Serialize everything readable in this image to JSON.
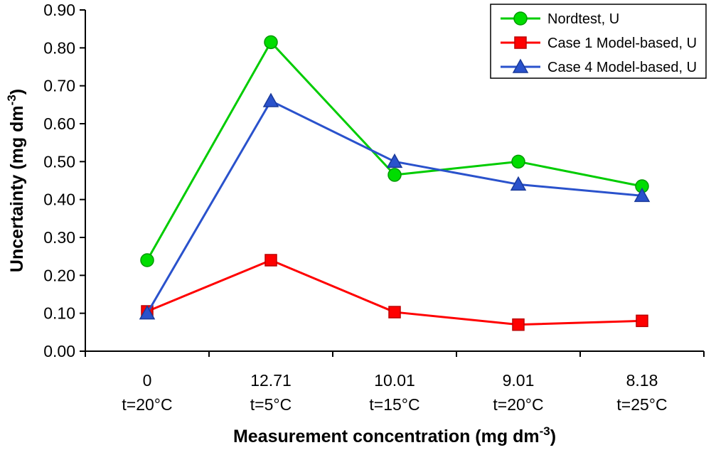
{
  "chart_data": {
    "type": "line",
    "title": "",
    "categories": [
      "0",
      "12.71",
      "10.01",
      "9.01",
      "8.18"
    ],
    "category_sublabels": [
      "t=20°C",
      "t=5°C",
      "t=15°C",
      "t=20°C",
      "t=25°C"
    ],
    "series": [
      {
        "name": "Nordtest, U",
        "marker": "circle",
        "color": "#00cc00",
        "marker_fill": "#00dd00",
        "marker_stroke": "#009900",
        "values": [
          0.24,
          0.815,
          0.465,
          0.5,
          0.435
        ]
      },
      {
        "name": "Case 1 Model-based, U",
        "marker": "square",
        "color": "#ff0000",
        "marker_fill": "#ff0000",
        "marker_stroke": "#bb0000",
        "values": [
          0.105,
          0.24,
          0.103,
          0.07,
          0.08
        ]
      },
      {
        "name": "Case 4 Model-based, U",
        "marker": "triangle",
        "color": "#2a52cc",
        "marker_fill": "#2a52cc",
        "marker_stroke": "#1a3a99",
        "values": [
          0.1,
          0.66,
          0.5,
          0.44,
          0.41
        ]
      }
    ],
    "xlabel": {
      "text": "Measurement concentration (mg dm",
      "sup": "-3",
      "end": ")"
    },
    "ylabel": {
      "text": "Uncertainty (mg dm",
      "sup": "-3",
      "end": ")"
    },
    "xlabel_full": "Measurement concentration (mg dm-3)",
    "ylabel_full": "Uncertainty (mg dm-3)",
    "ylim": [
      0,
      0.9
    ],
    "ytick_step": 0.1,
    "ytick_decimals": 2,
    "grid": false,
    "legend_position": "top-right",
    "axis_color": "#000000",
    "legend_border_color": "#000000",
    "background_color": "#ffffff"
  }
}
